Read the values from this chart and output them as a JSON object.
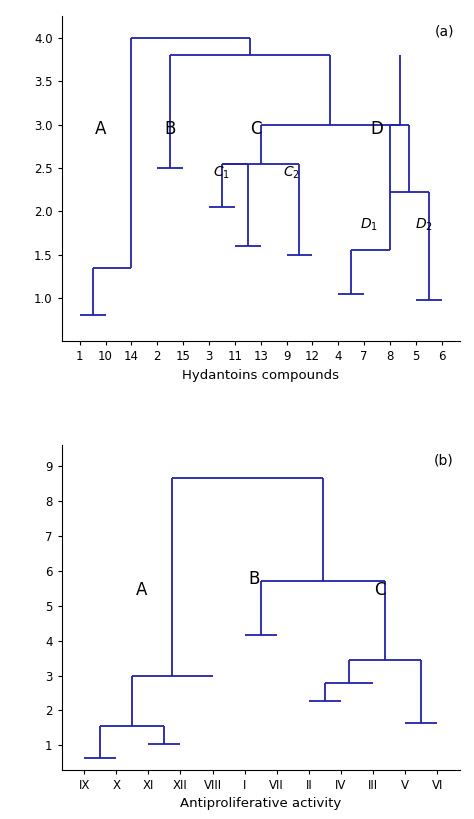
{
  "fig_bg": "#ffffff",
  "line_color": "#2222aa",
  "line_width": 1.5,
  "panel_a": {
    "xlabel": "Hydantoins compounds",
    "ylim": [
      0.5,
      4.25
    ],
    "yticks": [
      1,
      1.5,
      2,
      2.5,
      3,
      3.5,
      4
    ],
    "xtick_labels": [
      "1",
      "10",
      "14",
      "2",
      "15",
      "3",
      "11",
      "13",
      "9",
      "12",
      "4",
      "7",
      "8",
      "5",
      "6"
    ]
  },
  "panel_b": {
    "xlabel": "Antiproliferative activity",
    "ylim": [
      0.3,
      9.6
    ],
    "yticks": [
      1,
      2,
      3,
      4,
      5,
      6,
      7,
      8,
      9
    ],
    "xtick_labels": [
      "IX",
      "X",
      "XI",
      "XII",
      "VIII",
      "I",
      "VII",
      "II",
      "IV",
      "III",
      "V",
      "VI"
    ]
  }
}
